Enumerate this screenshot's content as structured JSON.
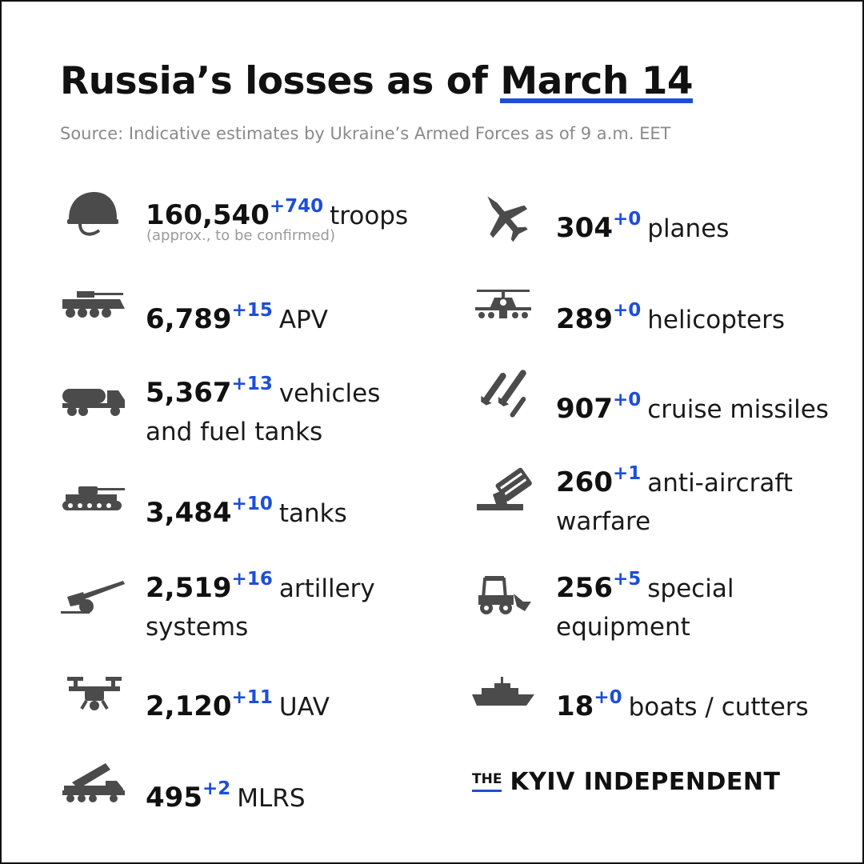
{
  "header": {
    "title_main": "Russia’s losses as of ",
    "title_date": "March 14",
    "source": "Source: Indicative estimates by Ukraine’s Armed Forces as of 9 a.m. EET"
  },
  "left": [
    {
      "icon": "helmet-icon",
      "value": "160,540",
      "delta": "+740",
      "label": "troops",
      "label2": "",
      "note": "(approx., to be confirmed)"
    },
    {
      "icon": "apv-icon",
      "value": "6,789",
      "delta": "+15",
      "label": "APV",
      "label2": ""
    },
    {
      "icon": "fuel-truck-icon",
      "value": "5,367",
      "delta": "+13",
      "label": "vehicles",
      "label2": "and fuel tanks"
    },
    {
      "icon": "tank-icon",
      "value": "3,484",
      "delta": "+10",
      "label": "tanks",
      "label2": ""
    },
    {
      "icon": "artillery-icon",
      "value": "2,519",
      "delta": "+16",
      "label": "artillery",
      "label2": "systems"
    },
    {
      "icon": "drone-icon",
      "value": "2,120",
      "delta": "+11",
      "label": "UAV",
      "label2": ""
    },
    {
      "icon": "mlrs-icon",
      "value": "495",
      "delta": "+2",
      "label": "MLRS",
      "label2": ""
    }
  ],
  "right": [
    {
      "icon": "plane-icon",
      "value": "304",
      "delta": "+0",
      "label": "planes",
      "label2": ""
    },
    {
      "icon": "helicopter-icon",
      "value": "289",
      "delta": "+0",
      "label": "helicopters",
      "label2": ""
    },
    {
      "icon": "missiles-icon",
      "value": "907",
      "delta": "+0",
      "label": "cruise missiles",
      "label2": ""
    },
    {
      "icon": "anti-aircraft-icon",
      "value": "260",
      "delta": "+1",
      "label": "anti-aircraft",
      "label2": "warfare"
    },
    {
      "icon": "special-equipment-icon",
      "value": "256",
      "delta": "+5",
      "label": "special",
      "label2": "equipment"
    },
    {
      "icon": "boat-icon",
      "value": "18",
      "delta": "+0",
      "label": "boats / cutters",
      "label2": ""
    }
  ],
  "brand": {
    "the": "THE",
    "name": "KYIV INDEPENDENT"
  },
  "colors": {
    "accent": "#1d4ed8",
    "icon": "#4b4b4b",
    "text": "#1a1a1a",
    "muted": "#8a8a8a"
  }
}
